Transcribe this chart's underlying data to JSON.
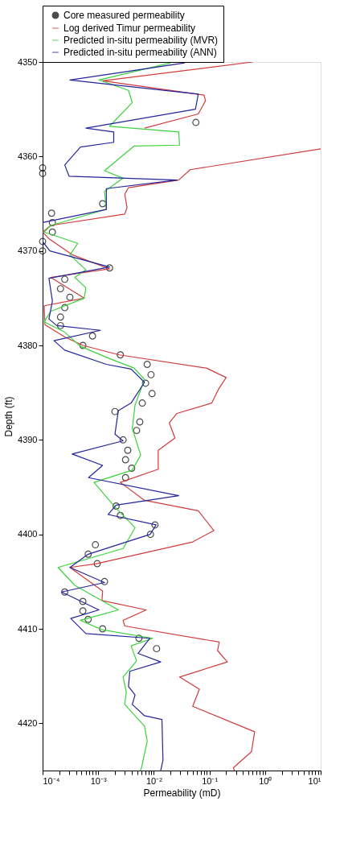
{
  "chart_data": {
    "type": "line",
    "xlabel": "Permeability (mD)",
    "ylabel": "Depth (ft)",
    "log": "x",
    "grid": false,
    "legend": "top",
    "xlim": [
      0.0001,
      10
    ],
    "ylim": [
      4425,
      4350
    ],
    "xticks": [
      {
        "value": 0.0001,
        "label": "10⁻⁴"
      },
      {
        "value": 0.0002,
        "label": null
      },
      {
        "value": 0.0003,
        "label": null
      },
      {
        "value": 0.0004,
        "label": null
      },
      {
        "value": 0.0005,
        "label": null
      },
      {
        "value": 0.0006,
        "label": null
      },
      {
        "value": 0.0007,
        "label": null
      },
      {
        "value": 0.0008,
        "label": null
      },
      {
        "value": 0.0009,
        "label": null
      },
      {
        "value": 0.001,
        "label": "10⁻³"
      },
      {
        "value": 0.002,
        "label": null
      },
      {
        "value": 0.003,
        "label": null
      },
      {
        "value": 0.004,
        "label": null
      },
      {
        "value": 0.005,
        "label": null
      },
      {
        "value": 0.006,
        "label": null
      },
      {
        "value": 0.007,
        "label": null
      },
      {
        "value": 0.008,
        "label": null
      },
      {
        "value": 0.009,
        "label": null
      },
      {
        "value": 0.01,
        "label": "10⁻²"
      },
      {
        "value": 0.02,
        "label": null
      },
      {
        "value": 0.03,
        "label": null
      },
      {
        "value": 0.04,
        "label": null
      },
      {
        "value": 0.05,
        "label": null
      },
      {
        "value": 0.06,
        "label": null
      },
      {
        "value": 0.07,
        "label": null
      },
      {
        "value": 0.08,
        "label": null
      },
      {
        "value": 0.09,
        "label": null
      },
      {
        "value": 0.1,
        "label": "10⁻¹"
      },
      {
        "value": 0.2,
        "label": null
      },
      {
        "value": 0.3,
        "label": null
      },
      {
        "value": 0.4,
        "label": null
      },
      {
        "value": 0.5,
        "label": null
      },
      {
        "value": 0.6,
        "label": null
      },
      {
        "value": 0.7,
        "label": null
      },
      {
        "value": 0.8,
        "label": null
      },
      {
        "value": 0.9,
        "label": null
      },
      {
        "value": 1,
        "label": "10⁰"
      },
      {
        "value": 2,
        "label": null
      },
      {
        "value": 3,
        "label": null
      },
      {
        "value": 4,
        "label": null
      },
      {
        "value": 5,
        "label": null
      },
      {
        "value": 6,
        "label": null
      },
      {
        "value": 7,
        "label": null
      },
      {
        "value": 8,
        "label": null
      },
      {
        "value": 9,
        "label": null
      },
      {
        "value": 10,
        "label": "10¹"
      }
    ],
    "yticks": [
      4350,
      4360,
      4370,
      4380,
      4390,
      4400,
      4410,
      4420
    ],
    "series": [
      {
        "name": "Core measured permeability",
        "type": "scatter",
        "marker": "circle",
        "color": "#000000",
        "x": [
          0.057,
          0.0001,
          0.0001,
          0.0012,
          0.000145,
          0.00015,
          0.00015,
          0.0001,
          0.0001,
          0.0016,
          0.00025,
          0.00021,
          0.00031,
          0.00025,
          0.00021,
          0.00021,
          0.00079,
          0.00053,
          0.0025,
          0.0076,
          0.0089,
          0.0071,
          0.0093,
          0.0062,
          0.002,
          0.0056,
          0.0049,
          0.0028,
          0.0034,
          0.0031,
          0.004,
          0.0031,
          0.0021,
          0.0025,
          0.0105,
          0.0087,
          0.00089,
          0.00066,
          0.00096,
          0.0013,
          0.00025,
          0.00053,
          0.00053,
          0.00066,
          0.0012,
          0.0054,
          0.0112
        ],
        "values": [
          4356.4,
          4361.2,
          4361.8,
          4365.0,
          4366.0,
          4367.0,
          4368.0,
          4369.0,
          4370.0,
          4371.8,
          4373.0,
          4374.0,
          4374.9,
          4376.0,
          4377.0,
          4377.9,
          4379.0,
          4380.0,
          4381.0,
          4382.0,
          4383.1,
          4384.0,
          4385.1,
          4386.1,
          4387.0,
          4388.1,
          4389.0,
          4390.0,
          4391.1,
          4392.1,
          4393.0,
          4394.0,
          4397.0,
          4398.0,
          4399.0,
          4400.0,
          4401.1,
          4402.1,
          4403.1,
          4405.0,
          4406.1,
          4407.1,
          4408.1,
          4409.0,
          4410.0,
          4411.0,
          4412.1
        ]
      },
      {
        "name": "Log derived Timur permeability",
        "type": "line",
        "line_style": "solid",
        "color": "#d03c3c",
        "x": [
          0.6,
          0.0012,
          0.08,
          0.085,
          0.063,
          0.0068,
          null,
          10,
          0.045,
          0.028,
          0.0035,
          0.003,
          0.0033,
          0.003,
          0.00014,
          0.0001,
          0.00013,
          0.00034,
          0.0016,
          0.00014,
          0.00056,
          0.000107,
          0.00011,
          0.00025,
          0.00053,
          0.0024,
          0.088,
          0.2,
          0.15,
          0.11,
          0.026,
          0.019,
          0.024,
          0.012,
          0.012,
          0.012,
          0.0025,
          0.0068,
          0.063,
          0.12,
          0.05,
          0.00093,
          0.00031,
          0.0012,
          0.00117,
          0.0073,
          0.0028,
          0.003,
          0.15,
          0.14,
          0.21,
          0.029,
          0.066,
          0.05,
          0.65,
          0.57,
          0.27,
          0.28
        ],
        "values": [
          4350.0,
          4352.0,
          4353.5,
          4354.1,
          4355.5,
          4357.0,
          null,
          4359.2,
          4361.4,
          4362.5,
          4363.3,
          4364.0,
          4365.4,
          4366.1,
          4367.3,
          4368.0,
          4368.7,
          4370.4,
          4371.9,
          4372.8,
          4375.0,
          4375.8,
          4377.8,
          4379.1,
          4380.0,
          4381.0,
          4382.4,
          4383.4,
          4384.5,
          4386.1,
          4387.2,
          4388.2,
          4389.8,
          4391.1,
          4392.1,
          4393.1,
          4394.5,
          4396.4,
          4397.5,
          4399.6,
          4400.8,
          4403.1,
          4403.5,
          4406.0,
          4407.0,
          4408.0,
          4409.1,
          4409.7,
          4411.4,
          4412.3,
          4413.5,
          4415.1,
          4416.4,
          4418.2,
          4420.9,
          4423.0,
          4424.7,
          4425.0
        ]
      },
      {
        "name": "Predicted in-situ permeability (MVR)",
        "type": "line",
        "line_style": "solid",
        "color": "#3cd23c",
        "x": [
          0.02,
          0.00103,
          0.0035,
          0.0041,
          0.0016,
          0.028,
          0.029,
          0.0044,
          0.0013,
          0.0028,
          0.0013,
          0.0014,
          0.00014,
          0.000107,
          0.00043,
          0.00031,
          0.0006,
          0.00038,
          0.0006,
          0.00056,
          0.00014,
          0.000107,
          0.00025,
          0.00048,
          0.0016,
          0.0044,
          0.0068,
          0.0046,
          0.0041,
          0.0058,
          0.0041,
          0.00084,
          0.002,
          0.0046,
          0.0028,
          0.00019,
          0.00038,
          0.0023,
          0.00048,
          0.00117,
          0.0095,
          0.0039,
          0.0049,
          0.0028,
          0.0032,
          0.003,
          0.0068,
          0.0076,
          0.006,
          0.0057
        ],
        "values": [
          4350.1,
          4351.9,
          4353.0,
          4354.3,
          4356.8,
          4357.4,
          4358.8,
          4358.9,
          4361.5,
          4362.3,
          4363.7,
          4365.6,
          4367.3,
          4368.0,
          4369.2,
          4370.4,
          4372.0,
          4372.8,
          4373.9,
          4375.0,
          4376.4,
          4377.5,
          4378.6,
          4380.1,
          4381.4,
          4382.4,
          4383.6,
          4386.3,
          4388.8,
          4391.6,
          4393.2,
          4394.5,
          4397.1,
          4399.3,
          4401.5,
          4403.5,
          4405.4,
          4408.0,
          4409.1,
          4410.1,
          4411.0,
          4411.8,
          4413.4,
          4415.1,
          4416.7,
          4418.0,
          4420.3,
          4421.9,
          4424.7,
          4425.0
        ]
      },
      {
        "name": "Predicted in-situ permeability (ANN)",
        "type": "line",
        "line_style": "solid",
        "color": "#24249c",
        "x": [
          0.036,
          0.00031,
          0.063,
          0.056,
          0.0006,
          0.0019,
          0.0019,
          0.00048,
          0.00025,
          0.0003,
          0.026,
          0.0014,
          0.0014,
          0.0001,
          0.0001,
          0.000135,
          0.0016,
          0.00013,
          0.00015,
          0.00013,
          0.00018,
          0.0011,
          0.00016,
          0.00025,
          0.0014,
          0.0039,
          0.0068,
          0.0039,
          0.0023,
          0.002,
          0.0028,
          0.00034,
          0.0012,
          0.00067,
          0.028,
          0.0021,
          0.0015,
          0.011,
          0.0086,
          0.00066,
          0.00031,
          0.0013,
          0.00022,
          0.00103,
          0.00032,
          0.0006,
          0.0085,
          0.0052,
          0.0133,
          0.0037,
          0.0035,
          0.0046,
          0.0041,
          0.0068,
          0.014,
          0.0146,
          0.0133
        ],
        "values": [
          4350.1,
          4351.9,
          4353.4,
          4355.0,
          4357.0,
          4357.4,
          4358.5,
          4359.0,
          4360.9,
          4362.1,
          4362.5,
          4363.4,
          4365.6,
          4367.0,
          4369.0,
          4370.0,
          4371.7,
          4372.9,
          4375.3,
          4377.2,
          4377.9,
          4378.4,
          4379.5,
          4380.5,
          4382.0,
          4382.5,
          4383.9,
          4386.1,
          4386.9,
          4389.4,
          4390.1,
          4391.5,
          4392.7,
          4394.0,
          4395.9,
          4396.9,
          4397.9,
          4399.0,
          4400.0,
          4402.1,
          4403.5,
          4405.1,
          4406.1,
          4408.0,
          4408.9,
          4410.5,
          4411.0,
          4412.6,
          4413.5,
          4414.5,
          4416.1,
          4417.0,
          4418.0,
          4419.2,
          4419.6,
          4423.9,
          4425.0
        ]
      }
    ]
  }
}
